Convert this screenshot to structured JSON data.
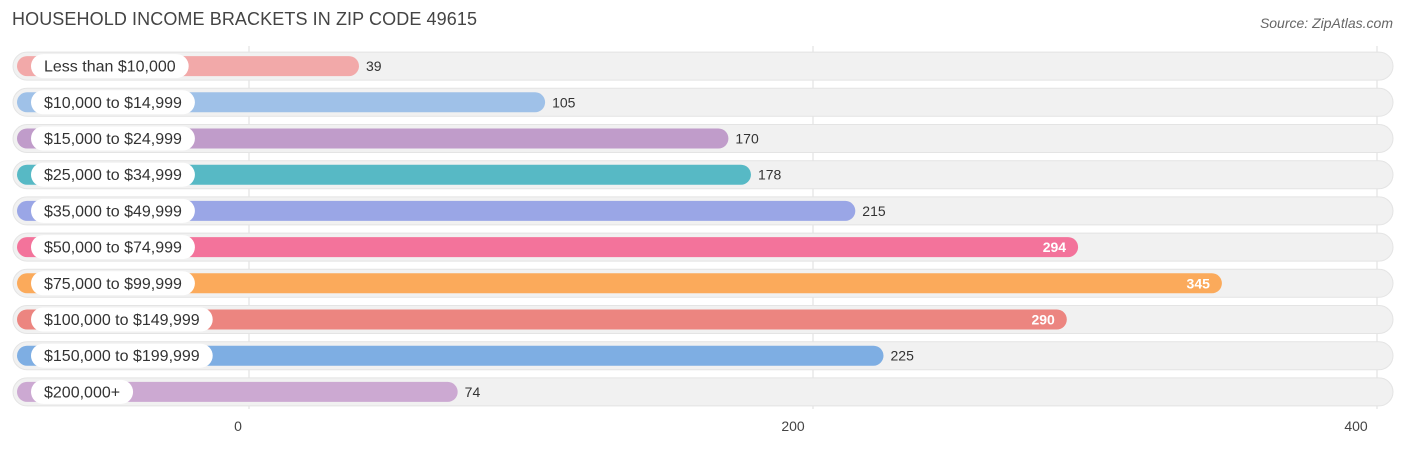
{
  "header": {
    "title": "HOUSEHOLD INCOME BRACKETS IN ZIP CODE 49615",
    "source": "Source: ZipAtlas.com"
  },
  "chart_data": {
    "type": "bar",
    "orientation": "horizontal",
    "title": "HOUSEHOLD INCOME BRACKETS IN ZIP CODE 49615",
    "xlabel": "",
    "ylabel": "",
    "xlim": [
      0,
      400
    ],
    "ticks": [
      0,
      200,
      400
    ],
    "grid": true,
    "categories": [
      "Less than $10,000",
      "$10,000 to $14,999",
      "$15,000 to $24,999",
      "$25,000 to $34,999",
      "$35,000 to $49,999",
      "$50,000 to $74,999",
      "$75,000 to $99,999",
      "$100,000 to $149,999",
      "$150,000 to $199,999",
      "$200,000+"
    ],
    "values": [
      39,
      105,
      170,
      178,
      215,
      294,
      345,
      290,
      225,
      74
    ],
    "colors": [
      "#f2a9a9",
      "#9fc1e8",
      "#c09cca",
      "#57b9c5",
      "#9aa6e6",
      "#f3739b",
      "#fbaa5b",
      "#ec8580",
      "#7eaee3",
      "#cca9d2"
    ],
    "value_label_inside": [
      false,
      false,
      false,
      false,
      false,
      true,
      true,
      true,
      false,
      false
    ]
  }
}
